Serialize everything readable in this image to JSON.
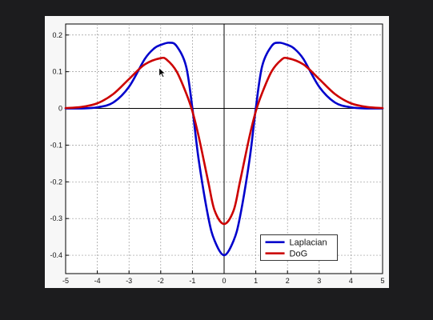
{
  "chart_data": {
    "type": "line",
    "title": "",
    "xlabel": "",
    "ylabel": "",
    "xlim": [
      -5,
      5
    ],
    "ylim": [
      -0.45,
      0.23
    ],
    "grid": true,
    "legend_position": "lower-right",
    "x_ticks": [
      -5,
      -4,
      -3,
      -2,
      -1,
      0,
      1,
      2,
      3,
      4,
      5
    ],
    "x_tick_labels": [
      "-5",
      "-4",
      "-3",
      "-2",
      "-1",
      "0",
      "1",
      "2",
      "3",
      "4",
      "5"
    ],
    "y_ticks": [
      0.2,
      0.1,
      0,
      -0.1,
      -0.2,
      -0.3,
      -0.4
    ],
    "y_tick_labels": [
      "0.2",
      "0.1",
      "0",
      "-0.1",
      "-0.2",
      "-0.3",
      "-0.4"
    ],
    "series": [
      {
        "name": "Laplacian",
        "color": "#0000cc",
        "x": [
          -5,
          -4.5,
          -4,
          -3.5,
          -3,
          -2.5,
          -2.2,
          -2,
          -1.73,
          -1.5,
          -1.2,
          -1,
          -0.8,
          -0.5,
          -0.3,
          0,
          0.3,
          0.5,
          0.8,
          1,
          1.2,
          1.5,
          1.73,
          2,
          2.2,
          2.5,
          3,
          3.5,
          4,
          4.5,
          5
        ],
        "y": [
          0.0,
          0.0,
          0.003,
          0.016,
          0.059,
          0.135,
          0.164,
          0.173,
          0.179,
          0.17,
          0.115,
          0.0,
          -0.141,
          -0.296,
          -0.36,
          -0.4,
          -0.36,
          -0.296,
          -0.141,
          0.0,
          0.115,
          0.17,
          0.179,
          0.173,
          0.164,
          0.135,
          0.059,
          0.016,
          0.003,
          0.0,
          0.0
        ]
      },
      {
        "name": "DoG",
        "color": "#cc0000",
        "x": [
          -5,
          -4.5,
          -4,
          -3.5,
          -3,
          -2.5,
          -2,
          -1.8,
          -1.5,
          -1.2,
          -1,
          -0.8,
          -0.5,
          -0.3,
          0,
          0.3,
          0.5,
          0.8,
          1,
          1.2,
          1.5,
          1.8,
          2,
          2.5,
          3,
          3.5,
          4,
          4.5,
          5
        ],
        "y": [
          0.001,
          0.004,
          0.014,
          0.039,
          0.08,
          0.12,
          0.137,
          0.132,
          0.101,
          0.042,
          -0.008,
          -0.077,
          -0.2,
          -0.278,
          -0.315,
          -0.278,
          -0.2,
          -0.077,
          -0.008,
          0.042,
          0.101,
          0.132,
          0.137,
          0.12,
          0.08,
          0.039,
          0.014,
          0.004,
          0.001
        ]
      }
    ]
  }
}
